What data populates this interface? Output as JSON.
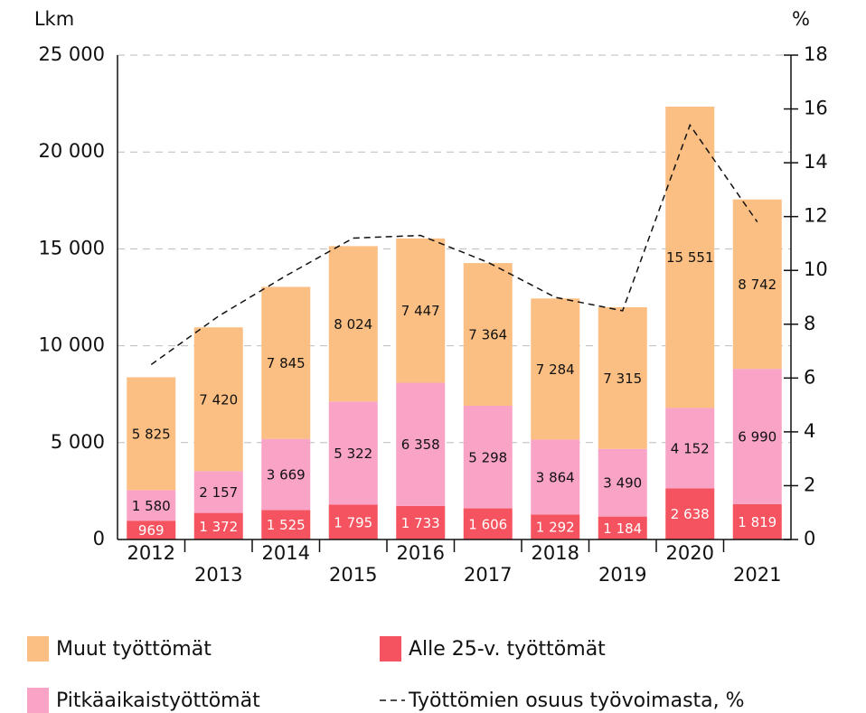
{
  "chart_data": {
    "type": "bar",
    "y_label": "Lkm",
    "y2_label": "%",
    "categories": [
      "2012",
      "2013",
      "2014",
      "2015",
      "2016",
      "2017",
      "2018",
      "2019",
      "2020",
      "2021"
    ],
    "stacked": true,
    "series": [
      {
        "name": "Alle 25-v. työttömät",
        "color": "#f5535f",
        "values": [
          969,
          1372,
          1525,
          1795,
          1733,
          1606,
          1292,
          1184,
          2638,
          1819
        ],
        "value_labels": [
          "969",
          "1 372",
          "1 525",
          "1 795",
          "1 733",
          "1 606",
          "1 292",
          "1 184",
          "2 638",
          "1 819"
        ]
      },
      {
        "name": "Pitkäaikaistyöttömät",
        "color": "#f9a3c7",
        "values": [
          1580,
          2157,
          3669,
          5322,
          6358,
          5298,
          3864,
          3490,
          4152,
          6990
        ],
        "value_labels": [
          "1 580",
          "2 157",
          "3 669",
          "5 322",
          "6 358",
          "5 298",
          "3 864",
          "3 490",
          "4 152",
          "6 990"
        ]
      },
      {
        "name": "Muut työttömät",
        "color": "#fcbf83",
        "values": [
          5825,
          7420,
          7845,
          8024,
          7447,
          7364,
          7284,
          7315,
          15551,
          8742
        ],
        "value_labels": [
          "5 825",
          "7 420",
          "7 845",
          "8 024",
          "7 447",
          "7 364",
          "7 284",
          "7 315",
          "15 551",
          "8 742"
        ]
      },
      {
        "name": "Työttömien osuus työvoimasta, %",
        "type": "line",
        "axis": "y2",
        "color": "#111111",
        "dashed": true,
        "values": [
          6.5,
          8.3,
          9.8,
          11.2,
          11.3,
          10.3,
          9.0,
          8.5,
          15.4,
          11.8
        ]
      }
    ],
    "ylim": [
      0,
      25000
    ],
    "yticks": [
      0,
      {
        "value": 5000,
        "label": "5 000"
      },
      {
        "value": 10000,
        "label": "10 000"
      },
      {
        "value": 15000,
        "label": "15 000"
      },
      {
        "value": 20000,
        "label": "20 000"
      },
      {
        "value": 25000,
        "label": "25 000"
      }
    ],
    "y2lim": [
      0,
      18
    ],
    "y2ticks": [
      0,
      2,
      4,
      6,
      8,
      10,
      12,
      14,
      16,
      18
    ],
    "grid": true
  }
}
